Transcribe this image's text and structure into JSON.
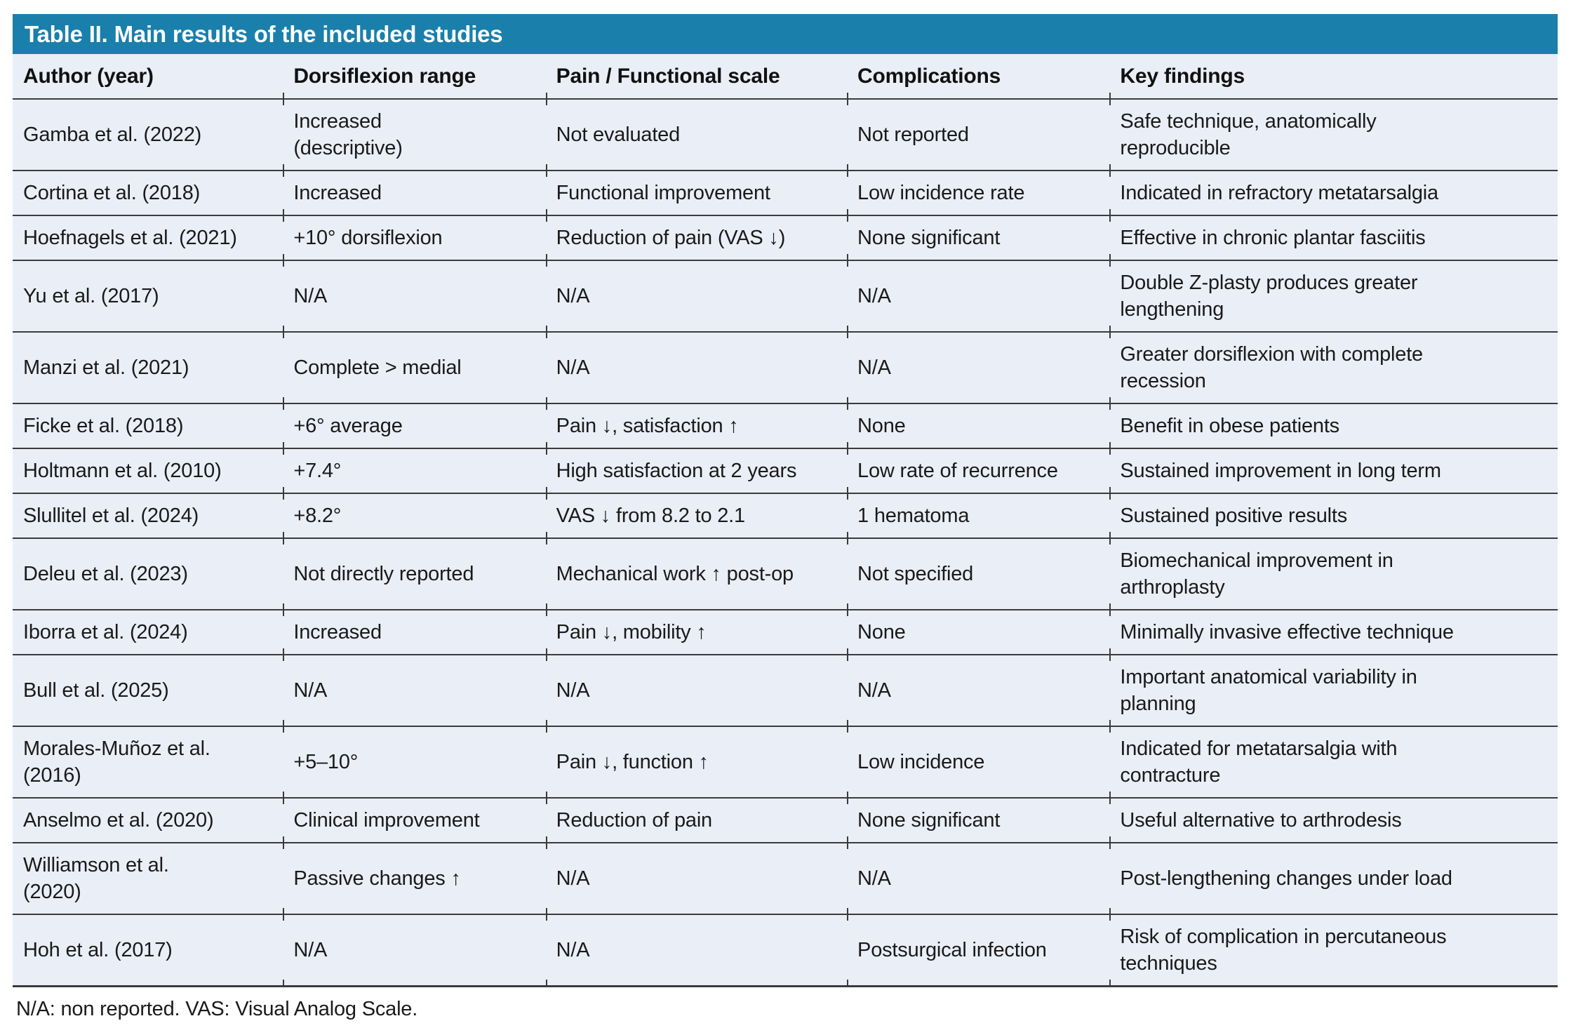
{
  "table": {
    "title": "Table II. Main results of the included studies",
    "columns": [
      "Author (year)",
      "Dorsiflexion range",
      "Pain / Functional scale",
      "Complications",
      "Key findings"
    ],
    "rows": [
      [
        "Gamba et al. (2022)",
        "Increased\n(descriptive)",
        "Not evaluated",
        "Not reported",
        "Safe technique, anatomically\nreproducible"
      ],
      [
        "Cortina et al. (2018)",
        "Increased",
        "Functional improvement",
        "Low incidence rate",
        "Indicated in refractory metatarsalgia"
      ],
      [
        "Hoefnagels et al. (2021)",
        "+10° dorsiflexion",
        "Reduction of pain (VAS ↓)",
        "None significant",
        "Effective in chronic plantar fasciitis"
      ],
      [
        "Yu et al. (2017)",
        "N/A",
        "N/A",
        "N/A",
        "Double Z-plasty produces greater\nlengthening"
      ],
      [
        "Manzi et al. (2021)",
        "Complete > medial",
        "N/A",
        "N/A",
        "Greater dorsiflexion with complete\nrecession"
      ],
      [
        "Ficke et al. (2018)",
        "+6° average",
        "Pain ↓, satisfaction ↑",
        "None",
        "Benefit in obese patients"
      ],
      [
        "Holtmann et al. (2010)",
        "+7.4°",
        "High satisfaction at 2 years",
        "Low rate of recurrence",
        "Sustained improvement in long term"
      ],
      [
        "Slullitel et al. (2024)",
        "+8.2°",
        "VAS ↓ from 8.2 to 2.1",
        "1 hematoma",
        "Sustained positive results"
      ],
      [
        "Deleu et al. (2023)",
        "Not directly reported",
        "Mechanical work ↑ post-op",
        "Not specified",
        "Biomechanical improvement in\narthroplasty"
      ],
      [
        "Iborra et al. (2024)",
        "Increased",
        "Pain ↓, mobility ↑",
        "None",
        "Minimally invasive effective technique"
      ],
      [
        "Bull et al. (2025)",
        "N/A",
        "N/A",
        "N/A",
        "Important anatomical variability in\nplanning"
      ],
      [
        "Morales-Muñoz et al.\n(2016)",
        "+5–10°",
        "Pain ↓, function ↑",
        "Low incidence",
        "Indicated for metatarsalgia with\ncontracture"
      ],
      [
        "Anselmo et al. (2020)",
        "Clinical improvement",
        "Reduction of pain",
        "None significant",
        "Useful alternative to arthrodesis"
      ],
      [
        "Williamson et al.\n(2020)",
        "Passive changes ↑",
        "N/A",
        "N/A",
        "Post-lengthening changes under load"
      ],
      [
        "Hoh et al. (2017)",
        "N/A",
        "N/A",
        "Postsurgical infection",
        "Risk of complication in percutaneous\ntechniques"
      ]
    ],
    "footnote": "N/A: non reported. VAS: Visual Analog Scale."
  },
  "colors": {
    "title_bar_background": "#1a7fab",
    "title_text": "#ffffff",
    "row_background": "#eaeef6",
    "border": "#3b3b3b",
    "body_text": "#1a1a1a",
    "page_background": "#ffffff"
  }
}
